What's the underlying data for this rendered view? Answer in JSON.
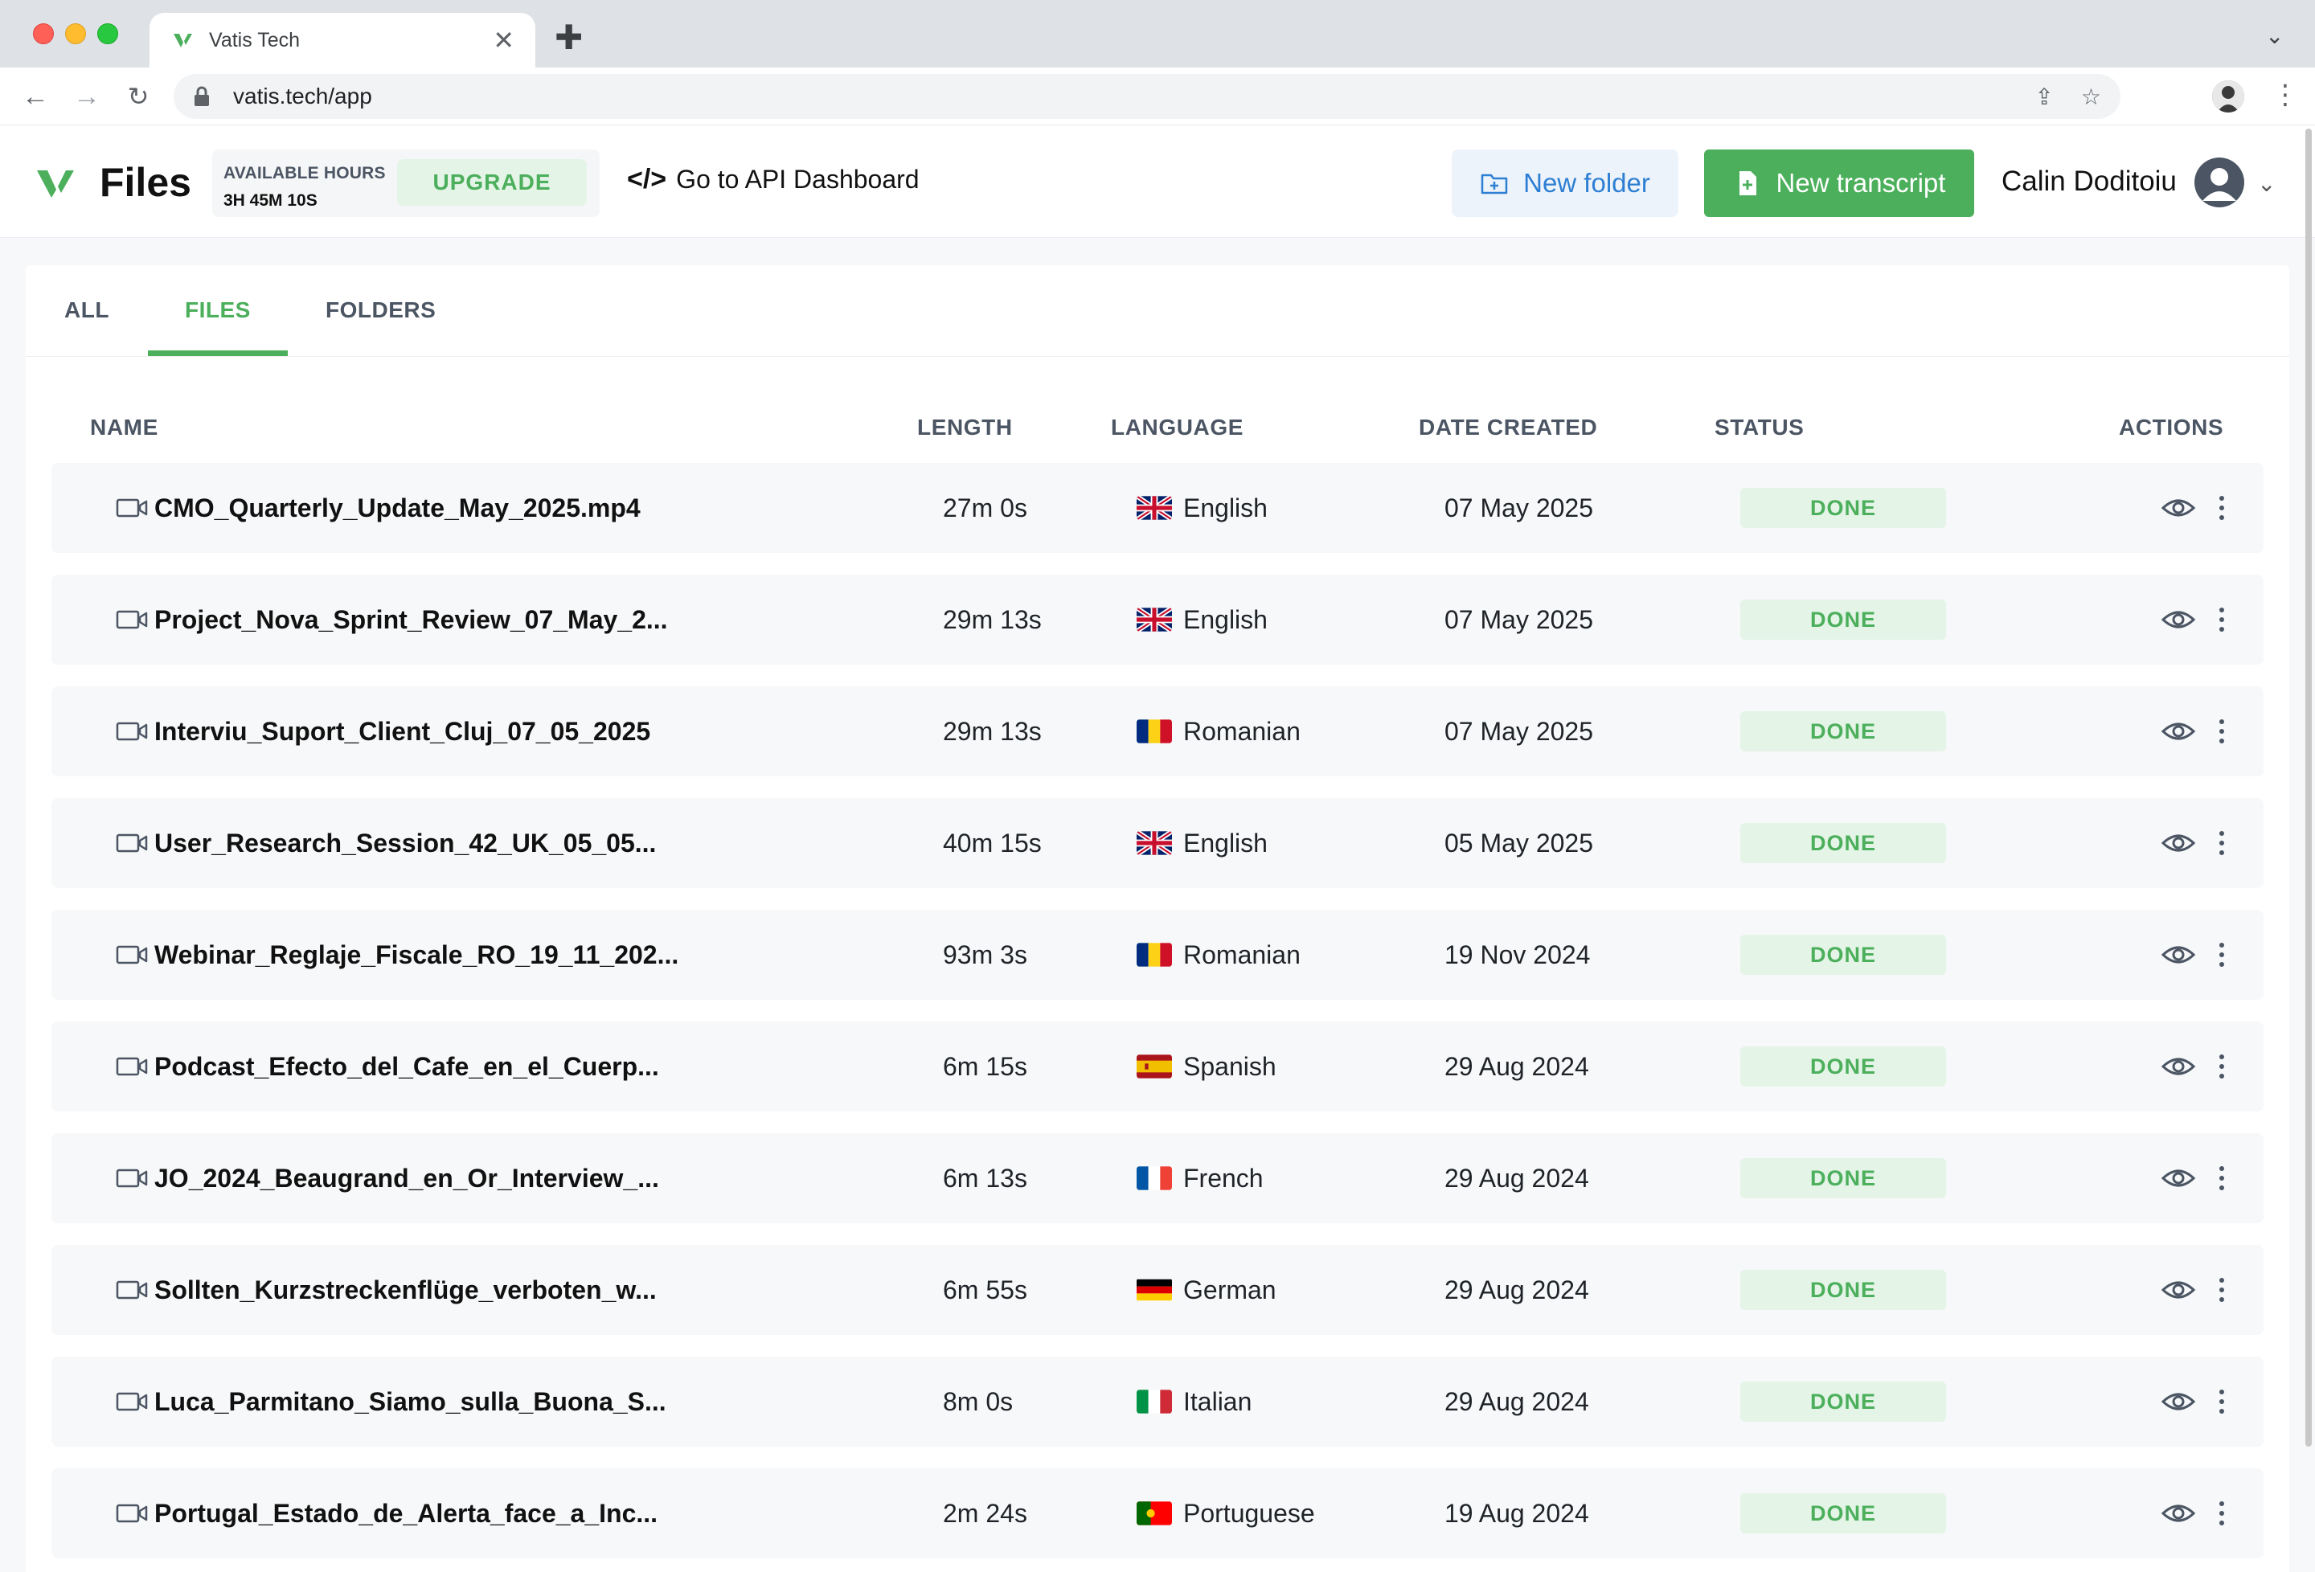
{
  "browser": {
    "tab_title": "Vatis Tech",
    "url": "vatis.tech/app"
  },
  "header": {
    "title": "Files",
    "available_hours_label": "AVAILABLE HOURS",
    "available_hours_value": "3H 45M 10S",
    "upgrade_label": "UPGRADE",
    "api_link_label": "Go to API Dashboard",
    "new_folder_label": "New folder",
    "new_transcript_label": "New transcript",
    "user_name": "Calin Doditoiu"
  },
  "colors": {
    "brand_green": "#4caf5c",
    "brand_blue": "#2d7fd3"
  },
  "tabs": [
    {
      "label": "ALL"
    },
    {
      "label": "FILES"
    },
    {
      "label": "FOLDERS"
    }
  ],
  "active_tab": "FILES",
  "table": {
    "headers": {
      "name": "NAME",
      "length": "LENGTH",
      "language": "LANGUAGE",
      "date": "DATE CREATED",
      "status": "STATUS",
      "actions": "ACTIONS"
    },
    "rows": [
      {
        "name": "CMO_Quarterly_Update_May_2025.mp4",
        "length": "27m 0s",
        "language": "English",
        "flag": "uk",
        "date": "07 May 2025",
        "status": "DONE"
      },
      {
        "name": "Project_Nova_Sprint_Review_07_May_2...",
        "length": "29m 13s",
        "language": "English",
        "flag": "uk",
        "date": "07 May 2025",
        "status": "DONE"
      },
      {
        "name": "Interviu_Suport_Client_Cluj_07_05_2025",
        "length": "29m 13s",
        "language": "Romanian",
        "flag": "ro",
        "date": "07 May 2025",
        "status": "DONE"
      },
      {
        "name": "User_Research_Session_42_UK_05_05...",
        "length": "40m 15s",
        "language": "English",
        "flag": "uk",
        "date": "05 May 2025",
        "status": "DONE"
      },
      {
        "name": "Webinar_Reglaje_Fiscale_RO_19_11_202...",
        "length": "93m 3s",
        "language": "Romanian",
        "flag": "ro",
        "date": "19 Nov 2024",
        "status": "DONE"
      },
      {
        "name": "Podcast_Efecto_del_Cafe_en_el_Cuerp...",
        "length": "6m 15s",
        "language": "Spanish",
        "flag": "es",
        "date": "29 Aug 2024",
        "status": "DONE"
      },
      {
        "name": "JO_2024_Beaugrand_en_Or_Interview_...",
        "length": "6m 13s",
        "language": "French",
        "flag": "fr",
        "date": "29 Aug 2024",
        "status": "DONE"
      },
      {
        "name": "Sollten_Kurzstreckenflüge_verboten_w...",
        "length": "6m 55s",
        "language": "German",
        "flag": "de",
        "date": "29 Aug 2024",
        "status": "DONE"
      },
      {
        "name": "Luca_Parmitano_Siamo_sulla_Buona_S...",
        "length": "8m 0s",
        "language": "Italian",
        "flag": "it",
        "date": "29 Aug 2024",
        "status": "DONE"
      },
      {
        "name": "Portugal_Estado_de_Alerta_face_a_Inc...",
        "length": "2m 24s",
        "language": "Portuguese",
        "flag": "pt",
        "date": "19 Aug 2024",
        "status": "DONE"
      }
    ]
  }
}
